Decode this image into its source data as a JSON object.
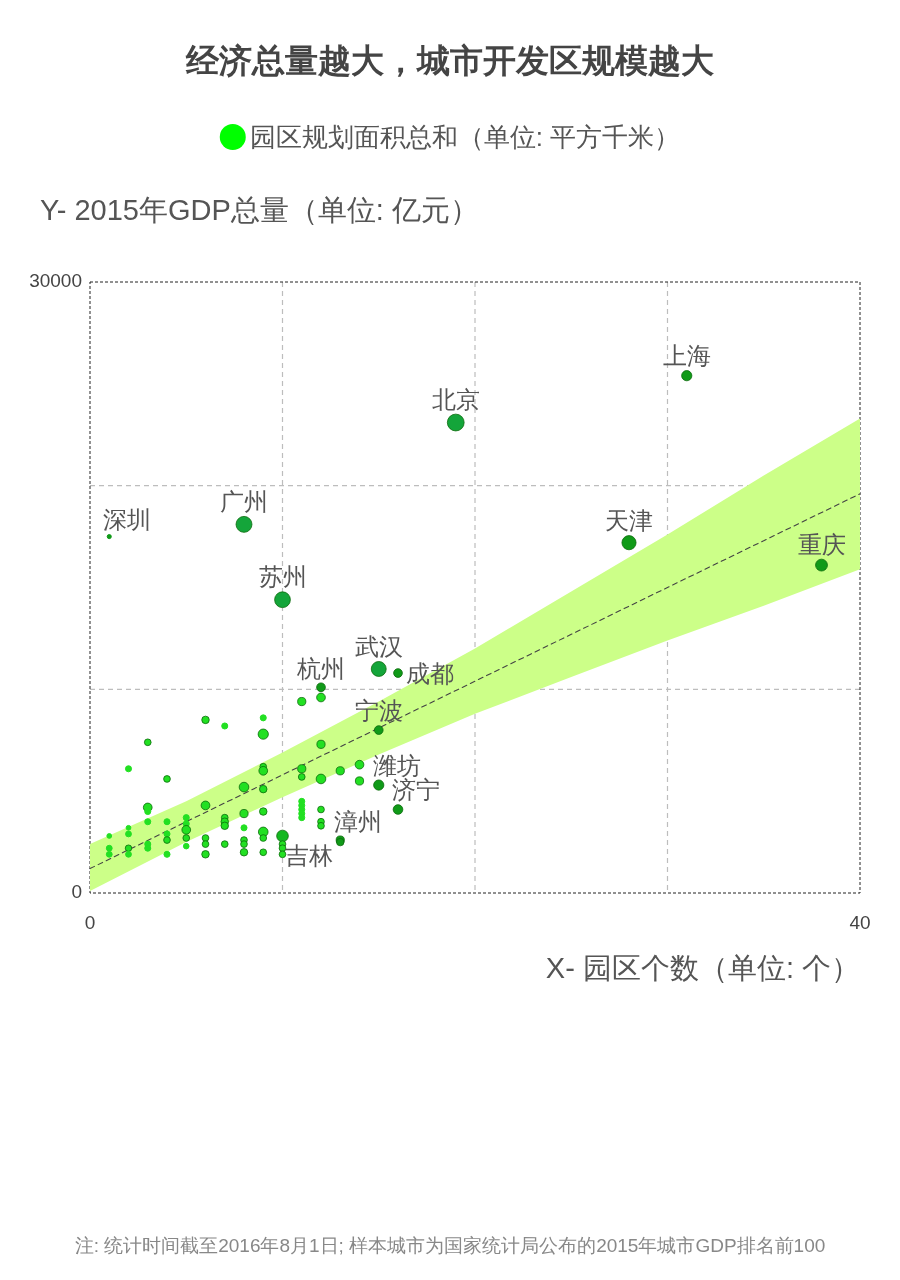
{
  "chart_data": {
    "type": "bubble",
    "title": "经济总量越大，城市开发区规模越大",
    "xlabel": "X- 园区个数（单位: 个）",
    "ylabel": "Y- 2015年GDP总量（单位: 亿元）",
    "xlim": [
      0,
      40
    ],
    "ylim": [
      0,
      30000
    ],
    "xticks": [
      0,
      {
        "value": 10,
        "label": null
      },
      {
        "value": 20,
        "label": null
      },
      {
        "value": 30,
        "label": null
      },
      40
    ],
    "yticks": [
      0,
      {
        "value": 10000,
        "label": null
      },
      {
        "value": 20000,
        "label": null
      },
      30000
    ],
    "grid": true,
    "legend": "top",
    "series": [
      {
        "type": "line",
        "color": "#444444",
        "line_style": "dashed",
        "x": [
          0,
          5,
          10,
          15,
          20,
          25,
          30,
          35,
          40
        ],
        "values": [
          1200,
          3500,
          5800,
          8100,
          10400,
          12700,
          15000,
          17300,
          19600
        ],
        "lower": [
          100,
          2500,
          4700,
          6800,
          8800,
          10600,
          12400,
          14100,
          15900
        ],
        "upper": [
          2400,
          4500,
          6900,
          9400,
          12000,
          14800,
          17600,
          20500,
          23300
        ]
      },
      {
        "name": "园区规划面积总和（单位: 平方千米）",
        "color": "#00ff00",
        "x": [
          1,
          1,
          1,
          1,
          2,
          2,
          2,
          2,
          2,
          3,
          3,
          3,
          3,
          3,
          3,
          4,
          4,
          4,
          4,
          4,
          5,
          5,
          5,
          5,
          5,
          6,
          6,
          6,
          6,
          6,
          7,
          7,
          7,
          7,
          7,
          8,
          8,
          8,
          8,
          8,
          8,
          8,
          9,
          9,
          9,
          9,
          9,
          9,
          9,
          9,
          9,
          10,
          10,
          10,
          10,
          10,
          11,
          11,
          11,
          11,
          11,
          11,
          11,
          11,
          12,
          12,
          12,
          12,
          12,
          12,
          12,
          13,
          13,
          13,
          14,
          14,
          15,
          15,
          15,
          16,
          16,
          19,
          28,
          31,
          38
        ],
        "values": [
          17500,
          2800,
          2200,
          1900,
          6100,
          3200,
          2900,
          2200,
          1900,
          7400,
          4200,
          4000,
          3500,
          2400,
          2200,
          5600,
          3500,
          2900,
          2600,
          1900,
          3700,
          3400,
          3100,
          2700,
          2300,
          8500,
          4300,
          2700,
          2400,
          1900,
          8200,
          3700,
          3500,
          3300,
          2400,
          18100,
          5200,
          3900,
          3200,
          2600,
          2400,
          2000,
          8600,
          7800,
          6200,
          6000,
          5100,
          4000,
          3000,
          2700,
          2000,
          14400,
          2800,
          2400,
          2200,
          1900,
          9400,
          6100,
          5700,
          4500,
          4300,
          4100,
          3900,
          3700,
          10100,
          9600,
          7300,
          5600,
          4100,
          3500,
          3300,
          6000,
          2600,
          2500,
          6300,
          5500,
          11000,
          8000,
          5300,
          10800,
          4100,
          23100,
          17200,
          25400,
          16100
        ],
        "sizes": [
          0.06,
          0.08,
          0.12,
          0.12,
          0.13,
          0.08,
          0.12,
          0.15,
          0.12,
          0.16,
          0.27,
          0.13,
          0.13,
          0.13,
          0.13,
          0.16,
          0.13,
          0.13,
          0.16,
          0.13,
          0.13,
          0.13,
          0.27,
          0.16,
          0.11,
          0.2,
          0.27,
          0.16,
          0.16,
          0.2,
          0.13,
          0.16,
          0.2,
          0.2,
          0.16,
          0.9,
          0.33,
          0.24,
          0.13,
          0.16,
          0.16,
          0.2,
          0.13,
          0.37,
          0.16,
          0.27,
          0.2,
          0.2,
          0.33,
          0.16,
          0.16,
          0.88,
          0.48,
          0.16,
          0.16,
          0.16,
          0.24,
          0.24,
          0.16,
          0.13,
          0.13,
          0.13,
          0.13,
          0.13,
          0.27,
          0.27,
          0.24,
          0.33,
          0.16,
          0.16,
          0.16,
          0.24,
          0.24,
          0.2,
          0.27,
          0.24,
          0.79,
          0.27,
          0.37,
          0.27,
          0.33,
          1,
          0.71,
          0.37,
          0.5
        ],
        "colors": [
          "#109a18",
          "#22e022",
          "#22e022",
          "#22e022",
          "#22e022",
          "#22e022",
          "#22e022",
          "#22e022",
          "#22e022",
          "#22e022",
          "#22e022",
          "#22e022",
          "#22e022",
          "#22e022",
          "#22e022",
          "#22e022",
          "#22e022",
          "#22e022",
          "#22e022",
          "#22e022",
          "#22e022",
          "#22e022",
          "#22e022",
          "#22e022",
          "#22e022",
          "#22e022",
          "#22e022",
          "#22e022",
          "#22e022",
          "#22e022",
          "#22e022",
          "#22e022",
          "#22e022",
          "#22e022",
          "#22e022",
          "#14a53a",
          "#22e022",
          "#22e022",
          "#22e022",
          "#22e022",
          "#22e022",
          "#22e022",
          "#22e022",
          "#22e022",
          "#22e022",
          "#22e022",
          "#22e022",
          "#22e022",
          "#22e022",
          "#22e022",
          "#22e022",
          "#14a53a",
          "#14b820",
          "#22e022",
          "#22e022",
          "#22e022",
          "#22e022",
          "#22e022",
          "#22e022",
          "#22e022",
          "#22e022",
          "#22e022",
          "#22e022",
          "#22e022",
          "#109a18",
          "#22e022",
          "#22e022",
          "#22e022",
          "#22e022",
          "#22e022",
          "#22e022",
          "#22e022",
          "#109a18",
          "#109a18",
          "#22e022",
          "#22e022",
          "#14a53a",
          "#109a18",
          "#109a18",
          "#109a18",
          "#109a18",
          "#14a53a",
          "#109a18",
          "#109a18",
          "#109a18"
        ]
      }
    ],
    "annotations": [
      {
        "text": "上海",
        "x": 31,
        "y": 25400
      },
      {
        "text": "北京",
        "x": 19,
        "y": 23100
      },
      {
        "text": "广州",
        "x": 8,
        "y": 18100
      },
      {
        "text": "深圳",
        "x": 1,
        "y": 17500
      },
      {
        "text": "天津",
        "x": 28,
        "y": 17200
      },
      {
        "text": "重庆",
        "x": 38,
        "y": 16100
      },
      {
        "text": "苏州",
        "x": 10,
        "y": 14400
      },
      {
        "text": "武汉",
        "x": 15,
        "y": 11000
      },
      {
        "text": "成都",
        "x": 16,
        "y": 10800
      },
      {
        "text": "杭州",
        "x": 12,
        "y": 10100
      },
      {
        "text": "宁波",
        "x": 15,
        "y": 8000
      },
      {
        "text": "潍坊",
        "x": 15,
        "y": 5300
      },
      {
        "text": "济宁",
        "x": 16,
        "y": 4100
      },
      {
        "text": "吉林",
        "x": 10,
        "y": 2800
      },
      {
        "text": "漳州",
        "x": 13,
        "y": 2600
      },
      "注: 统计时间截至2016年8月1日; 样本城市为国家统计局公布的2015年城市GDP排名前100"
    ]
  }
}
